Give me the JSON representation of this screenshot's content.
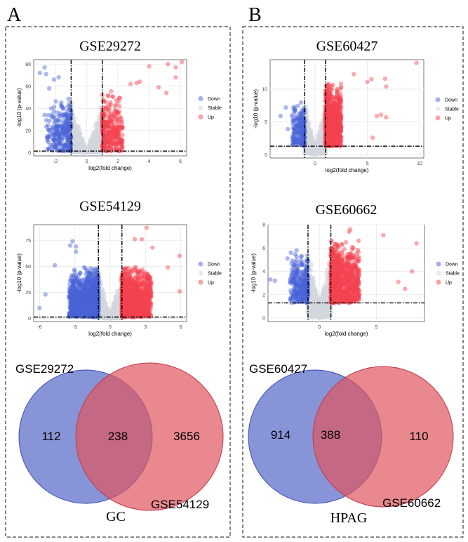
{
  "panels": [
    {
      "label": "A",
      "venn": {
        "left_name": "GSE29272",
        "right_name": "GSE54129",
        "left_only": "112",
        "overlap": "238",
        "right_only": "3656",
        "caption": "GC"
      }
    },
    {
      "label": "B",
      "venn": {
        "left_name": "GSE60427",
        "right_name": "GSE60662",
        "left_only": "914",
        "overlap": "388",
        "right_only": "110",
        "caption": "HPAG"
      }
    }
  ],
  "colors": {
    "down": "#4a63d8",
    "stable": "#d3d8dd",
    "up": "#f4434f",
    "venn_left": "#5566c8",
    "venn_right": "#e05560"
  },
  "chart_data": [
    {
      "type": "scatter",
      "title": "GSE29272",
      "xlabel": "log2(fold change)",
      "ylabel": "-log10 (p-value)",
      "xlim": [
        -3.4,
        6.4
      ],
      "ylim": [
        -3,
        84
      ],
      "xticks": [
        -2,
        0,
        2,
        4,
        6
      ],
      "yticks": [
        0,
        20,
        40,
        60,
        80
      ],
      "thresholds": {
        "logfc": [
          -1,
          1
        ],
        "neg_log10_p": 1.3
      },
      "grid": true,
      "legend": [
        "Down",
        "Stable",
        "Up"
      ],
      "legend_position": "right",
      "outliers": [
        [
          -3.0,
          72
        ],
        [
          -2.7,
          77
        ],
        [
          -2.6,
          71
        ],
        [
          -2.1,
          66
        ],
        [
          -1.8,
          68
        ],
        [
          -2.4,
          58
        ],
        [
          -2.7,
          34
        ],
        [
          -1.5,
          6
        ],
        [
          6.1,
          82
        ],
        [
          5.2,
          80
        ],
        [
          5.7,
          77
        ],
        [
          5.7,
          68
        ],
        [
          4.0,
          78
        ],
        [
          4.6,
          59
        ],
        [
          5.1,
          54
        ],
        [
          3.4,
          64
        ],
        [
          3.2,
          63
        ],
        [
          2.8,
          62
        ]
      ]
    },
    {
      "type": "scatter",
      "title": "GSE60427",
      "xlabel": "log2(fold change)",
      "ylabel": "-log10 (p-value)",
      "xlim": [
        -4.3,
        10.4
      ],
      "ylim": [
        -0.5,
        14.5
      ],
      "xticks": [
        0,
        5,
        10
      ],
      "yticks": [
        0,
        5,
        10
      ],
      "thresholds": {
        "logfc": [
          -1,
          1
        ],
        "neg_log10_p": 1.3
      },
      "grid": true,
      "legend": [
        "Down",
        "Stable",
        "Up"
      ],
      "legend_position": "right",
      "outliers": [
        [
          9.7,
          14
        ],
        [
          3.7,
          12.3
        ],
        [
          6.7,
          11.6
        ],
        [
          5.4,
          11.5
        ],
        [
          6.8,
          10.4
        ],
        [
          5.0,
          11.1
        ],
        [
          5.9,
          5.9
        ],
        [
          6.3,
          6.1
        ],
        [
          6.8,
          5.7
        ],
        [
          5.5,
          2.6
        ],
        [
          -2.8,
          7.2
        ],
        [
          -3.3,
          5.9
        ],
        [
          -2.6,
          3.9
        ]
      ]
    },
    {
      "type": "scatter",
      "title": "GSE54129",
      "xlabel": "log2(fold change)",
      "ylabel": "-log10 (p-value)",
      "xlim": [
        -6.5,
        6.5
      ],
      "ylim": [
        -3,
        90
      ],
      "xticks": [
        -6,
        -3,
        0,
        3,
        6
      ],
      "yticks": [
        0,
        25,
        50,
        75
      ],
      "thresholds": {
        "logfc": [
          -1,
          1
        ],
        "neg_log10_p": 1.3
      },
      "grid": true,
      "legend": [
        "Down",
        "Stable",
        "Up"
      ],
      "legend_position": "right",
      "outliers": [
        [
          -6,
          10
        ],
        [
          -4.7,
          51
        ],
        [
          -3.2,
          74
        ],
        [
          -3.4,
          70
        ],
        [
          -2.9,
          69
        ],
        [
          -2.9,
          64
        ],
        [
          -5.5,
          23
        ],
        [
          3.1,
          87
        ],
        [
          2.1,
          76
        ],
        [
          2.7,
          76
        ],
        [
          5.9,
          60
        ],
        [
          5.9,
          26
        ],
        [
          4.9,
          49
        ],
        [
          3.6,
          68
        ]
      ]
    },
    {
      "type": "scatter",
      "title": "GSE60662",
      "xlabel": "log2(fold change)",
      "ylabel": "-log10 (p-value)",
      "xlim": [
        -4.5,
        9.2
      ],
      "ylim": [
        -0.3,
        8
      ],
      "xticks": [
        0,
        5
      ],
      "yticks": [
        0,
        2,
        4,
        6,
        8
      ],
      "thresholds": {
        "logfc": [
          -1,
          1
        ],
        "neg_log10_p": 1.3
      },
      "grid": true,
      "legend": [
        "Down",
        "Stable",
        "Up"
      ],
      "legend_position": "right",
      "outliers": [
        [
          2.7,
          7.6
        ],
        [
          2.6,
          7.4
        ],
        [
          5.6,
          7.1
        ],
        [
          8.5,
          6.4
        ],
        [
          8.1,
          4.0
        ],
        [
          7.5,
          2.5
        ],
        [
          6.9,
          3.1
        ],
        [
          -4.3,
          3.3
        ],
        [
          -3.9,
          3.2
        ],
        [
          -2.0,
          5.8
        ],
        [
          -2.5,
          5.6
        ],
        [
          -2.8,
          5.1
        ]
      ]
    }
  ]
}
